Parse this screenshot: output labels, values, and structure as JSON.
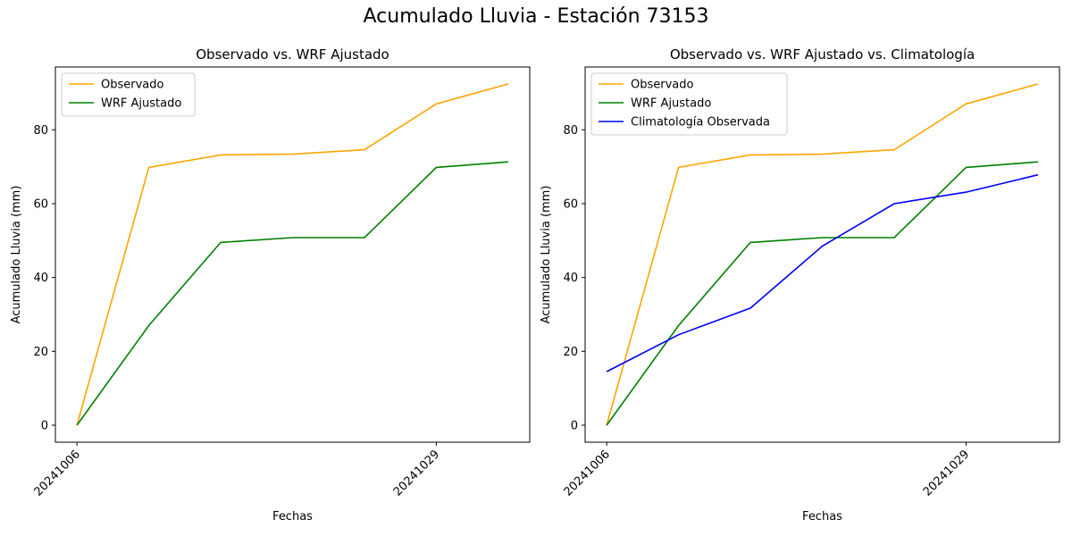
{
  "figure": {
    "suptitle": "Acumulado Lluvia - Estación 73153"
  },
  "chart_data": [
    {
      "type": "line",
      "title": "Observado vs. WRF Ajustado",
      "xlabel": "Fechas",
      "ylabel": "Acumulado Lluvia (mm)",
      "x": [
        0,
        1,
        2,
        3,
        4,
        5,
        6
      ],
      "x_tick_positions": [
        0,
        5
      ],
      "x_tick_labels": [
        "20241006",
        "20241029"
      ],
      "xlim": [
        -0.3,
        6.3
      ],
      "ylim": [
        -4.6,
        97
      ],
      "y_ticks": [
        0,
        20,
        40,
        60,
        80
      ],
      "legend_position": "upper-left",
      "series": [
        {
          "name": "Observado",
          "color": "#FFA500",
          "values": [
            0,
            69.8,
            73.2,
            73.4,
            74.6,
            87.0,
            92.4
          ]
        },
        {
          "name": "WRF Ajustado",
          "color": "#008000",
          "values": [
            0,
            27.0,
            49.5,
            50.8,
            50.8,
            69.8,
            71.3
          ]
        }
      ]
    },
    {
      "type": "line",
      "title": "Observado vs. WRF Ajustado vs. Climatología",
      "xlabel": "Fechas",
      "ylabel": "Acumulado Lluvia (mm)",
      "x": [
        0,
        1,
        2,
        3,
        4,
        5,
        6
      ],
      "x_tick_positions": [
        0,
        5
      ],
      "x_tick_labels": [
        "20241006",
        "20241029"
      ],
      "xlim": [
        -0.3,
        6.3
      ],
      "ylim": [
        -4.6,
        97
      ],
      "y_ticks": [
        0,
        20,
        40,
        60,
        80
      ],
      "legend_position": "upper-left",
      "series": [
        {
          "name": "Observado",
          "color": "#FFA500",
          "values": [
            0,
            69.8,
            73.2,
            73.4,
            74.6,
            87.0,
            92.4
          ]
        },
        {
          "name": "WRF Ajustado",
          "color": "#008000",
          "values": [
            0,
            27.0,
            49.5,
            50.8,
            50.8,
            69.8,
            71.3
          ]
        },
        {
          "name": "Climatología Observada",
          "color": "#0000FF",
          "values": [
            14.5,
            24.5,
            31.7,
            48.5,
            60.0,
            63.1,
            67.8
          ]
        }
      ]
    }
  ]
}
